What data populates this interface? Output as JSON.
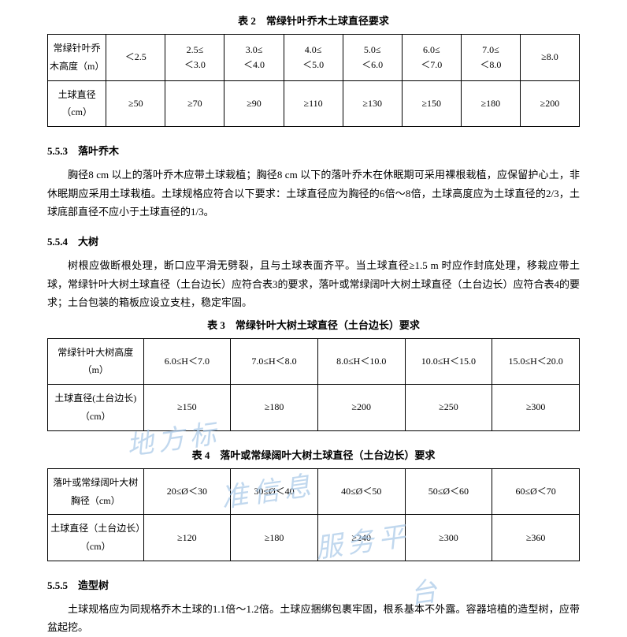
{
  "table2": {
    "caption": "表 2　常绿针叶乔木土球直径要求",
    "row1_label": "常绿针叶乔木高度（m）",
    "row2_label": "土球直径（cm）",
    "cols": [
      "＜2.5",
      "2.5≤\n＜3.0",
      "3.0≤\n＜4.0",
      "4.0≤\n＜5.0",
      "5.0≤\n＜6.0",
      "6.0≤\n＜7.0",
      "7.0≤\n＜8.0",
      "≥8.0"
    ],
    "vals": [
      "≥50",
      "≥70",
      "≥90",
      "≥110",
      "≥130",
      "≥150",
      "≥180",
      "≥200"
    ]
  },
  "section553": {
    "heading": "5.5.3　落叶乔木",
    "para": "胸径8 cm 以上的落叶乔木应带土球栽植；胸径8 cm 以下的落叶乔木在休眠期可采用裸根栽植，应保留护心土，非休眠期应采用土球栽植。土球规格应符合以下要求：土球直径应为胸径的6倍～8倍，土球高度应为土球直径的2/3，土球底部直径不应小于土球直径的1/3。"
  },
  "section554": {
    "heading": "5.5.4　大树",
    "para": "树根应做断根处理，断口应平滑无劈裂，且与土球表面齐平。当土球直径≥1.5 m 时应作封底处理，移栽应带土球，常绿针叶大树土球直径（土台边长）应符合表3的要求，落叶或常绿阔叶大树土球直径（土台边长）应符合表4的要求；土台包装的箱板应设立支柱，稳定牢固。"
  },
  "table3": {
    "caption": "表 3　常绿针叶大树土球直径（土台边长）要求",
    "row1_label": "常绿针叶大树高度（m）",
    "row2_label": "土球直径(土台边长)（cm）",
    "cols": [
      "6.0≤H＜7.0",
      "7.0≤H＜8.0",
      "8.0≤H＜10.0",
      "10.0≤H＜15.0",
      "15.0≤H＜20.0"
    ],
    "vals": [
      "≥150",
      "≥180",
      "≥200",
      "≥250",
      "≥300"
    ]
  },
  "table4": {
    "caption": "表 4　落叶或常绿阔叶大树土球直径（土台边长）要求",
    "row1_label": "落叶或常绿阔叶大树胸径（cm）",
    "row2_label": "土球直径（土台边长）（cm）",
    "cols": [
      "20≤Ø＜30",
      "30≤Ø＜40",
      "40≤Ø＜50",
      "50≤Ø＜60",
      "60≤Ø＜70"
    ],
    "vals": [
      "≥120",
      "≥180",
      "≥240",
      "≥300",
      "≥360"
    ]
  },
  "section555": {
    "heading": "5.5.5　造型树",
    "para": "土球规格应为同规格乔木土球的1.1倍～1.2倍。土球应捆绑包裹牢固，根系基本不外露。容器培植的造型树，应带盆起挖。"
  },
  "watermark": {
    "w1": "地方标",
    "w2": "准信息",
    "w3": "服务平",
    "w4": "台"
  }
}
